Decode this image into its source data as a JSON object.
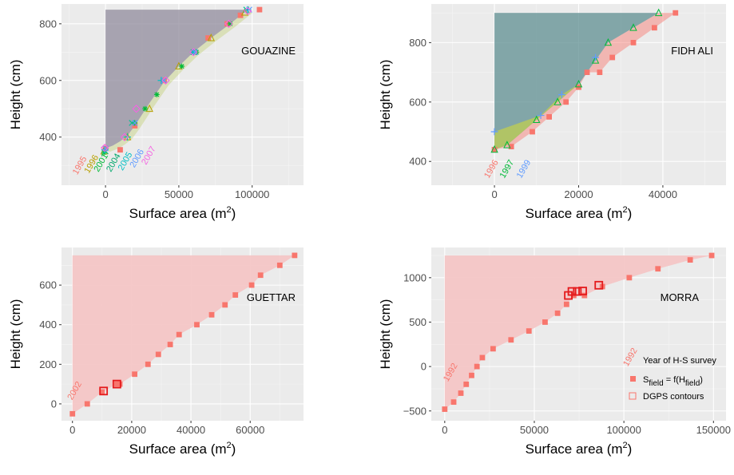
{
  "colors": {
    "panel_bg": "#ebebeb",
    "grid_major": "#ffffff",
    "salmon": "#f8766d",
    "green": "#00ba38",
    "blue": "#619cff",
    "olive": "#b79f00",
    "teal": "#00bfc4",
    "magenta": "#f564e3",
    "gray_fill": "#8c8698",
    "teal_fill": "#5f8f92",
    "green_fill": "#b8c95a",
    "pink_fill": "#f4c6c6",
    "legend_red": "#e41a1c"
  },
  "chart_data": [
    {
      "type": "scatter",
      "panel": "GOUAZINE",
      "label": "GOUAZINE",
      "xlabel": "Surface area (m",
      "xlabel_sup": "2",
      "xlabel_end": ")",
      "ylabel": "Height (cm)",
      "xlim": [
        -30000,
        135000
      ],
      "ylim": [
        230,
        870
      ],
      "xticks": [
        0,
        50000,
        100000
      ],
      "xtick_labels": [
        "0",
        "50000",
        "100000"
      ],
      "yticks": [
        400,
        600,
        800
      ],
      "ytick_labels": [
        "400",
        "600",
        "800"
      ],
      "area": {
        "x0": 0,
        "y_top": 850,
        "points": [
          [
            0,
            360
          ],
          [
            5000,
            370
          ],
          [
            10000,
            385
          ],
          [
            15000,
            405
          ],
          [
            20000,
            440
          ],
          [
            25000,
            480
          ],
          [
            30000,
            520
          ],
          [
            40000,
            595
          ],
          [
            50000,
            650
          ],
          [
            60000,
            700
          ],
          [
            72000,
            750
          ],
          [
            85000,
            800
          ],
          [
            97000,
            850
          ]
        ]
      },
      "series": [
        {
          "name": "1995",
          "color": "#f8766d",
          "marker": "square",
          "points": [
            [
              0,
              360
            ],
            [
              10000,
              355
            ],
            [
              20000,
              440
            ],
            [
              40000,
              600
            ],
            [
              70000,
              750
            ],
            [
              83000,
              800
            ],
            [
              92000,
              830
            ],
            [
              105000,
              850
            ]
          ]
        },
        {
          "name": "1996",
          "color": "#b79f00",
          "marker": "triangle",
          "points": [
            [
              -1000,
              350
            ],
            [
              15000,
              400
            ],
            [
              30000,
              500
            ],
            [
              50000,
              650
            ],
            [
              72000,
              750
            ],
            [
              95000,
              840
            ]
          ]
        },
        {
          "name": "2001",
          "color": "#00ba38",
          "marker": "star",
          "points": [
            [
              -1000,
              345
            ],
            [
              20000,
              450
            ],
            [
              27000,
              500
            ],
            [
              35000,
              550
            ],
            [
              52000,
              650
            ],
            [
              62000,
              700
            ],
            [
              85000,
              800
            ]
          ]
        },
        {
          "name": "2004",
          "color": "#00c094",
          "marker": "cross",
          "points": [
            [
              0,
              350
            ],
            [
              18000,
              450
            ],
            [
              40000,
              600
            ],
            [
              60000,
              700
            ],
            [
              96000,
              850
            ]
          ]
        },
        {
          "name": "2005",
          "color": "#00bfc4",
          "marker": "plus",
          "points": [
            [
              -500,
              355
            ],
            [
              15000,
              400
            ],
            [
              38000,
              600
            ],
            [
              60000,
              700
            ],
            [
              97000,
              850
            ]
          ]
        },
        {
          "name": "2006",
          "color": "#619cff",
          "marker": "xmark",
          "points": [
            [
              0,
              360
            ],
            [
              20000,
              450
            ],
            [
              40000,
              600
            ],
            [
              61000,
              700
            ],
            [
              98000,
              850
            ]
          ]
        },
        {
          "name": "2007",
          "color": "#f564e3",
          "marker": "diamond",
          "points": [
            [
              -500,
              362
            ],
            [
              13000,
              400
            ],
            [
              21000,
              500
            ],
            [
              41000,
              600
            ],
            [
              60000,
              700
            ],
            [
              84000,
              800
            ],
            [
              97000,
              845
            ]
          ]
        }
      ],
      "year_labels": [
        {
          "text": "1995",
          "color": "#f8766d",
          "x": -16000,
          "y": 295
        },
        {
          "text": "1996",
          "color": "#b79f00",
          "x": -8000,
          "y": 300
        },
        {
          "text": "2001",
          "color": "#00ba38",
          "x": -1500,
          "y": 305
        },
        {
          "text": "2004",
          "color": "#00a86b",
          "x": 7000,
          "y": 305
        },
        {
          "text": "2005",
          "color": "#00bfc4",
          "x": 15000,
          "y": 310
        },
        {
          "text": "2006",
          "color": "#619cff",
          "x": 23000,
          "y": 320
        },
        {
          "text": "2007",
          "color": "#f564e3",
          "x": 31000,
          "y": 330
        }
      ]
    },
    {
      "type": "scatter",
      "panel": "FIDH ALI",
      "label": "FIDH ALI",
      "xlabel": "Surface area (m",
      "xlabel_sup": "2",
      "xlabel_end": ")",
      "ylabel": "Height (cm)",
      "xlim": [
        -15000,
        55000
      ],
      "ylim": [
        320,
        930
      ],
      "xticks": [
        0,
        20000,
        40000
      ],
      "xtick_labels": [
        "0",
        "20000",
        "40000"
      ],
      "yticks": [
        400,
        600,
        800
      ],
      "ytick_labels": [
        "400",
        "600",
        "800"
      ],
      "series": [
        {
          "name": "1996",
          "color": "#f8766d",
          "marker": "square",
          "points": [
            [
              0,
              440
            ],
            [
              4000,
              450
            ],
            [
              9000,
              500
            ],
            [
              13000,
              550
            ],
            [
              17000,
              600
            ],
            [
              20000,
              650
            ],
            [
              22000,
              700
            ],
            [
              25000,
              700
            ],
            [
              28000,
              750
            ],
            [
              33000,
              800
            ],
            [
              38000,
              850
            ],
            [
              43000,
              900
            ]
          ]
        },
        {
          "name": "1997",
          "color": "#00ba38",
          "marker": "triangle",
          "points": [
            [
              0,
              440
            ],
            [
              3000,
              455
            ],
            [
              10000,
              540
            ],
            [
              15000,
              600
            ],
            [
              20000,
              660
            ],
            [
              24000,
              740
            ],
            [
              27000,
              800
            ],
            [
              33000,
              850
            ],
            [
              39000,
              900
            ]
          ]
        },
        {
          "name": "1999",
          "color": "#619cff",
          "marker": "plus",
          "points": [
            [
              0,
              500
            ],
            [
              11000,
              555
            ],
            [
              16000,
              625
            ],
            [
              24000,
              750
            ]
          ]
        }
      ],
      "year_labels": [
        {
          "text": "1996",
          "color": "#f8766d",
          "x": -200,
          "y": 370
        },
        {
          "text": "1997",
          "color": "#00ba38",
          "x": 3500,
          "y": 370
        },
        {
          "text": "1999",
          "color": "#619cff",
          "x": 7500,
          "y": 370
        }
      ]
    },
    {
      "type": "scatter",
      "panel": "GUETTAR",
      "label": "GUETTAR",
      "xlabel": "Surface area (m",
      "xlabel_sup": "2",
      "xlabel_end": ")",
      "ylabel": "Height (cm)",
      "xlim": [
        -3700,
        78000
      ],
      "ylim": [
        -85,
        790
      ],
      "xticks": [
        0,
        20000,
        40000,
        60000
      ],
      "xtick_labels": [
        "0",
        "20000",
        "40000",
        "60000"
      ],
      "yticks": [
        0,
        200,
        400,
        600
      ],
      "ytick_labels": [
        "0",
        "200",
        "400",
        "600"
      ],
      "area": {
        "x0": 0,
        "y_top": 750
      },
      "series": [
        {
          "name": "2002",
          "color": "#f8766d",
          "marker": "square",
          "points": [
            [
              0,
              -50
            ],
            [
              5000,
              0
            ],
            [
              10000,
              60
            ],
            [
              15000,
              100
            ],
            [
              16000,
              100
            ],
            [
              21000,
              150
            ],
            [
              25500,
              200
            ],
            [
              29000,
              250
            ],
            [
              33000,
              300
            ],
            [
              36000,
              350
            ],
            [
              42000,
              400
            ],
            [
              47000,
              450
            ],
            [
              51500,
              500
            ],
            [
              55000,
              550
            ],
            [
              60500,
              600
            ],
            [
              63500,
              650
            ],
            [
              70000,
              700
            ],
            [
              75000,
              750
            ]
          ]
        }
      ],
      "dgps": [
        [
          10500,
          65
        ],
        [
          15000,
          100
        ]
      ],
      "year_labels": [
        {
          "text": "2002",
          "color": "#f8766d",
          "x": 1500,
          "y": 60
        }
      ]
    },
    {
      "type": "scatter",
      "panel": "MORRA",
      "label": "MORRA",
      "xlabel": "Surface area (m",
      "xlabel_sup": "2",
      "xlabel_end": ")",
      "ylabel": "Height (cm)",
      "xlim": [
        -7500,
        157000
      ],
      "ylim": [
        -610,
        1340
      ],
      "xticks": [
        0,
        50000,
        100000,
        150000
      ],
      "xtick_labels": [
        "0",
        "50000",
        "100000",
        "150000"
      ],
      "yticks": [
        -500,
        0,
        500,
        1000
      ],
      "ytick_labels": [
        "−500",
        "0",
        "500",
        "1000"
      ],
      "area": {
        "x0": 0,
        "y_top": 1250
      },
      "series": [
        {
          "name": "1992",
          "color": "#f8766d",
          "marker": "square",
          "points": [
            [
              0,
              -480
            ],
            [
              5000,
              -400
            ],
            [
              9000,
              -300
            ],
            [
              12000,
              -200
            ],
            [
              15000,
              -100
            ],
            [
              18000,
              0
            ],
            [
              21000,
              100
            ],
            [
              27000,
              200
            ],
            [
              37000,
              300
            ],
            [
              47000,
              400
            ],
            [
              56000,
              500
            ],
            [
              63000,
              600
            ],
            [
              68000,
              700
            ],
            [
              72000,
              800
            ],
            [
              78000,
              800
            ],
            [
              88000,
              900
            ],
            [
              103000,
              1000
            ],
            [
              119000,
              1100
            ],
            [
              137000,
              1200
            ],
            [
              149000,
              1250
            ]
          ]
        }
      ],
      "dgps": [
        [
          69000,
          800
        ],
        [
          71000,
          845
        ],
        [
          74000,
          845
        ],
        [
          77000,
          850
        ],
        [
          86000,
          915
        ]
      ],
      "year_labels": [
        {
          "text": "1992",
          "color": "#f8766d",
          "x": 4500,
          "y": -80
        }
      ],
      "legend": {
        "year_title": "Year of H-S survey",
        "year_sample": "1992",
        "s_field_main": "S",
        "s_field_sub": "field",
        "s_field_mid": " = f(H",
        "s_field_sub2": "field",
        "s_field_end": ")",
        "dgps_label": "DGPS contours"
      }
    }
  ]
}
